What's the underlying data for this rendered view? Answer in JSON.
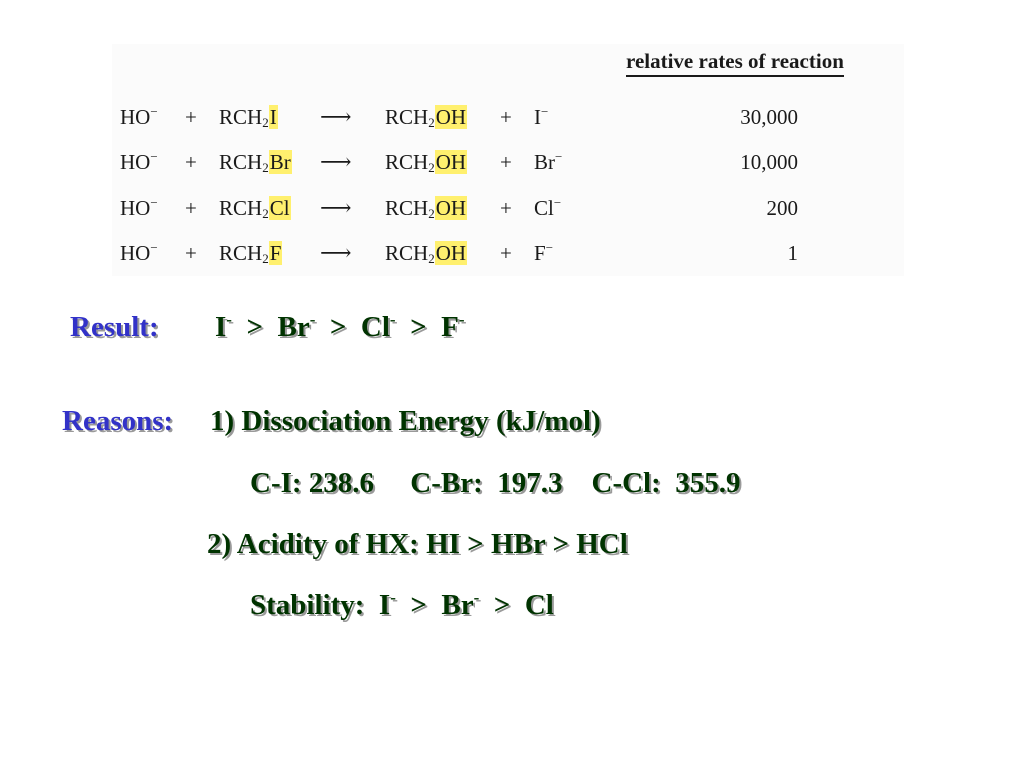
{
  "table": {
    "header": "relative rates of reaction",
    "rows": [
      {
        "nuc": "HO",
        "nuc_charge": "−",
        "plus": "+",
        "sub_pre": "RCH",
        "sub_num": "2",
        "sub_x": "I",
        "arrow": "⟶",
        "prod_pre": "RCH",
        "prod_num": "2",
        "prod_oh": "OH",
        "leave": "I",
        "leave_charge": "−",
        "rate": "30,000"
      },
      {
        "nuc": "HO",
        "nuc_charge": "−",
        "plus": "+",
        "sub_pre": "RCH",
        "sub_num": "2",
        "sub_x": "Br",
        "arrow": "⟶",
        "prod_pre": "RCH",
        "prod_num": "2",
        "prod_oh": "OH",
        "leave": "Br",
        "leave_charge": "−",
        "rate": "10,000"
      },
      {
        "nuc": "HO",
        "nuc_charge": "−",
        "plus": "+",
        "sub_pre": "RCH",
        "sub_num": "2",
        "sub_x": "Cl",
        "arrow": "⟶",
        "prod_pre": "RCH",
        "prod_num": "2",
        "prod_oh": "OH",
        "leave": "Cl",
        "leave_charge": "−",
        "rate": "200"
      },
      {
        "nuc": "HO",
        "nuc_charge": "−",
        "plus": "+",
        "sub_pre": "RCH",
        "sub_num": "2",
        "sub_x": "F",
        "arrow": "⟶",
        "prod_pre": "RCH",
        "prod_num": "2",
        "prod_oh": "OH",
        "leave": "F",
        "leave_charge": "−",
        "rate": "1"
      }
    ]
  },
  "result": {
    "label": "Result:",
    "i": "I",
    "br": "Br",
    "cl": "Cl",
    "f": "F",
    "charge": "-",
    "gt": ">"
  },
  "reasons": {
    "label": "Reasons:",
    "item1": "1) Dissociation Energy (kJ/mol)",
    "energies": "C-I: 238.6     C-Br:  197.3    C-Cl:  355.9",
    "item2": "2) Acidity of HX:  HI  > HBr  >  HCl",
    "stability_label": "Stability:",
    "stab_i": "I",
    "stab_br": "Br",
    "stab_cl": "Cl",
    "charge": "-",
    "gt": ">"
  },
  "colors": {
    "label_blue": "#3232c8",
    "text_green": "#003300",
    "highlight": "#fff06e"
  }
}
